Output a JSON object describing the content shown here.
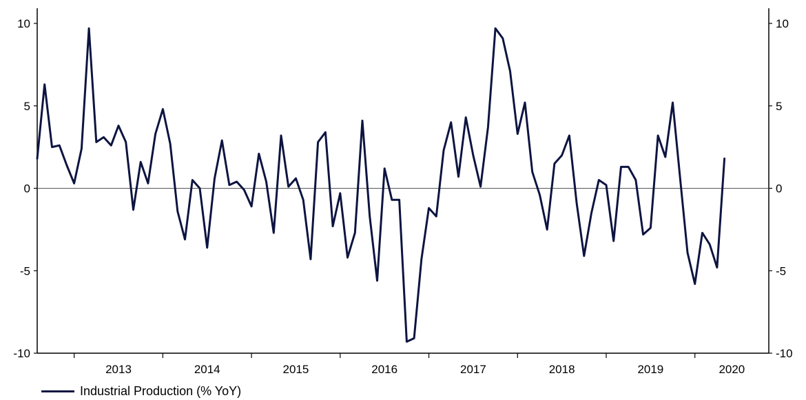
{
  "chart_data": {
    "type": "line",
    "x_start": "2012-08",
    "x_end": "2020-11",
    "year_labels": [
      "2013",
      "2014",
      "2015",
      "2016",
      "2017",
      "2018",
      "2019",
      "2020"
    ],
    "ylim": [
      -10,
      10
    ],
    "yticks": [
      "10",
      "5",
      "0",
      "-5",
      "-10"
    ],
    "dual_y_axis": true,
    "zero_line": true,
    "grid": false,
    "legend_position": "bottom-left",
    "series_color": "#0d1440",
    "series": [
      {
        "name": "Industrial Production (% YoY)",
        "points": [
          [
            "2012-08",
            1.8
          ],
          [
            "2012-09",
            6.3
          ],
          [
            "2012-10",
            2.5
          ],
          [
            "2012-11",
            2.6
          ],
          [
            "2012-12",
            1.4
          ],
          [
            "2013-01",
            0.3
          ],
          [
            "2013-02",
            2.4
          ],
          [
            "2013-03",
            9.7
          ],
          [
            "2013-04",
            2.8
          ],
          [
            "2013-05",
            3.1
          ],
          [
            "2013-06",
            2.6
          ],
          [
            "2013-07",
            3.8
          ],
          [
            "2013-08",
            2.8
          ],
          [
            "2013-09",
            -1.3
          ],
          [
            "2013-10",
            1.6
          ],
          [
            "2013-11",
            0.3
          ],
          [
            "2013-12",
            3.3
          ],
          [
            "2014-01",
            4.8
          ],
          [
            "2014-02",
            2.7
          ],
          [
            "2014-03",
            -1.4
          ],
          [
            "2014-04",
            -3.1
          ],
          [
            "2014-05",
            0.5
          ],
          [
            "2014-06",
            0.0
          ],
          [
            "2014-07",
            -3.6
          ],
          [
            "2014-08",
            0.6
          ],
          [
            "2014-09",
            2.9
          ],
          [
            "2014-10",
            0.2
          ],
          [
            "2014-11",
            0.4
          ],
          [
            "2014-12",
            -0.1
          ],
          [
            "2015-01",
            -1.1
          ],
          [
            "2015-02",
            2.1
          ],
          [
            "2015-03",
            0.4
          ],
          [
            "2015-04",
            -2.7
          ],
          [
            "2015-05",
            3.2
          ],
          [
            "2015-06",
            0.1
          ],
          [
            "2015-07",
            0.6
          ],
          [
            "2015-08",
            -0.7
          ],
          [
            "2015-09",
            -4.3
          ],
          [
            "2015-10",
            2.8
          ],
          [
            "2015-11",
            3.4
          ],
          [
            "2015-12",
            -2.3
          ],
          [
            "2016-01",
            -0.3
          ],
          [
            "2016-02",
            -4.2
          ],
          [
            "2016-03",
            -2.7
          ],
          [
            "2016-04",
            4.1
          ],
          [
            "2016-05",
            -1.7
          ],
          [
            "2016-06",
            -5.6
          ],
          [
            "2016-07",
            1.2
          ],
          [
            "2016-08",
            -0.7
          ],
          [
            "2016-09",
            -0.7
          ],
          [
            "2016-10",
            -9.3
          ],
          [
            "2016-11",
            -9.1
          ],
          [
            "2016-12",
            -4.3
          ],
          [
            "2017-01",
            -1.2
          ],
          [
            "2017-02",
            -1.7
          ],
          [
            "2017-03",
            2.3
          ],
          [
            "2017-04",
            4.0
          ],
          [
            "2017-05",
            0.7
          ],
          [
            "2017-06",
            4.3
          ],
          [
            "2017-07",
            2.0
          ],
          [
            "2017-08",
            0.1
          ],
          [
            "2017-09",
            3.7
          ],
          [
            "2017-10",
            9.7
          ],
          [
            "2017-11",
            9.1
          ],
          [
            "2017-12",
            7.1
          ],
          [
            "2018-01",
            3.3
          ],
          [
            "2018-02",
            5.2
          ],
          [
            "2018-03",
            1.0
          ],
          [
            "2018-04",
            -0.4
          ],
          [
            "2018-05",
            -2.5
          ],
          [
            "2018-06",
            1.5
          ],
          [
            "2018-07",
            2.0
          ],
          [
            "2018-08",
            3.2
          ],
          [
            "2018-09",
            -0.9
          ],
          [
            "2018-10",
            -4.1
          ],
          [
            "2018-11",
            -1.5
          ],
          [
            "2018-12",
            0.5
          ],
          [
            "2019-01",
            0.2
          ],
          [
            "2019-02",
            -3.2
          ],
          [
            "2019-03",
            1.3
          ],
          [
            "2019-04",
            1.3
          ],
          [
            "2019-05",
            0.5
          ],
          [
            "2019-06",
            -2.8
          ],
          [
            "2019-07",
            -2.4
          ],
          [
            "2019-08",
            3.2
          ],
          [
            "2019-09",
            1.9
          ],
          [
            "2019-10",
            5.2
          ],
          [
            "2019-11",
            0.6
          ],
          [
            "2019-12",
            -3.9
          ],
          [
            "2020-01",
            -5.8
          ],
          [
            "2020-02",
            -2.7
          ],
          [
            "2020-03",
            -3.4
          ],
          [
            "2020-04",
            -4.8
          ],
          [
            "2020-05",
            1.8
          ]
        ]
      }
    ]
  }
}
